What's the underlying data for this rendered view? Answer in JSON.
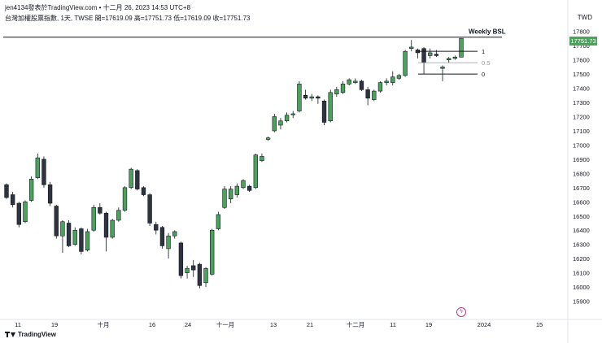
{
  "header": {
    "published_by": "jen4134發表於TradingView.com • 十二月 26, 2023 14:53 UTC+8",
    "symbol_line": "台灣加權股票指數, 1天, TWSE  開=17619.09  高=17751.73  低=17619.09  收=17751.73"
  },
  "currency": "TWD",
  "last_price_badge": "17751.73",
  "footer": {
    "brand": "TradingView"
  },
  "annotations": {
    "level_label": "Weekly BSL",
    "fib_1": "1",
    "fib_05": "0.5",
    "fib_0": "0"
  },
  "colors": {
    "up": "#4aa35a",
    "down": "#2f3340",
    "level_line": "#131722",
    "event_icon": "#b23c8c"
  },
  "chart_data": {
    "type": "candlestick",
    "ylim": [
      15800,
      17850
    ],
    "y_ticks": [
      15900,
      16000,
      16100,
      16200,
      16300,
      16400,
      16500,
      16600,
      16700,
      16800,
      16900,
      17000,
      17100,
      17200,
      17300,
      17400,
      17500,
      17600,
      17700,
      17800
    ],
    "x_ticks": [
      "11",
      "19",
      "十月",
      "16",
      "24",
      "十一月",
      "13",
      "21",
      "十二月",
      "11",
      "19",
      "2024",
      "15"
    ],
    "levels": [
      {
        "name": "Weekly BSL",
        "value": 17760
      },
      {
        "name": "1",
        "value": 17660
      },
      {
        "name": "0.5",
        "value": 17580
      },
      {
        "name": "0",
        "value": 17500
      }
    ],
    "candles": [
      {
        "o": 16720,
        "h": 16730,
        "l": 16620,
        "c": 16630
      },
      {
        "o": 16650,
        "h": 16670,
        "l": 16560,
        "c": 16580
      },
      {
        "o": 16590,
        "h": 16600,
        "l": 16420,
        "c": 16440
      },
      {
        "o": 16460,
        "h": 16610,
        "l": 16450,
        "c": 16600
      },
      {
        "o": 16610,
        "h": 16780,
        "l": 16600,
        "c": 16760
      },
      {
        "o": 16770,
        "h": 16940,
        "l": 16760,
        "c": 16910
      },
      {
        "o": 16900,
        "h": 16920,
        "l": 16700,
        "c": 16720
      },
      {
        "o": 16720,
        "h": 16740,
        "l": 16570,
        "c": 16590
      },
      {
        "o": 16570,
        "h": 16580,
        "l": 16340,
        "c": 16360
      },
      {
        "o": 16360,
        "h": 16470,
        "l": 16240,
        "c": 16460
      },
      {
        "o": 16450,
        "h": 16470,
        "l": 16280,
        "c": 16290
      },
      {
        "o": 16300,
        "h": 16420,
        "l": 16290,
        "c": 16400
      },
      {
        "o": 16410,
        "h": 16420,
        "l": 16230,
        "c": 16250
      },
      {
        "o": 16260,
        "h": 16410,
        "l": 16250,
        "c": 16390
      },
      {
        "o": 16400,
        "h": 16580,
        "l": 16390,
        "c": 16560
      },
      {
        "o": 16560,
        "h": 16590,
        "l": 16510,
        "c": 16520
      },
      {
        "o": 16520,
        "h": 16530,
        "l": 16250,
        "c": 16350
      },
      {
        "o": 16350,
        "h": 16480,
        "l": 16340,
        "c": 16470
      },
      {
        "o": 16470,
        "h": 16560,
        "l": 16460,
        "c": 16540
      },
      {
        "o": 16540,
        "h": 16710,
        "l": 16530,
        "c": 16700
      },
      {
        "o": 16700,
        "h": 16840,
        "l": 16690,
        "c": 16830
      },
      {
        "o": 16820,
        "h": 16830,
        "l": 16680,
        "c": 16690
      },
      {
        "o": 16700,
        "h": 16710,
        "l": 16640,
        "c": 16650
      },
      {
        "o": 16650,
        "h": 16660,
        "l": 16430,
        "c": 16450
      },
      {
        "o": 16440,
        "h": 16460,
        "l": 16370,
        "c": 16400
      },
      {
        "o": 16420,
        "h": 16430,
        "l": 16270,
        "c": 16290
      },
      {
        "o": 16270,
        "h": 16380,
        "l": 16200,
        "c": 16360
      },
      {
        "o": 16360,
        "h": 16400,
        "l": 16340,
        "c": 16390
      },
      {
        "o": 16310,
        "h": 16320,
        "l": 16060,
        "c": 16080
      },
      {
        "o": 16100,
        "h": 16150,
        "l": 16060,
        "c": 16130
      },
      {
        "o": 16150,
        "h": 16190,
        "l": 16070,
        "c": 16120
      },
      {
        "o": 16160,
        "h": 16170,
        "l": 15990,
        "c": 16010
      },
      {
        "o": 16030,
        "h": 16140,
        "l": 16000,
        "c": 16130
      },
      {
        "o": 16090,
        "h": 16410,
        "l": 16080,
        "c": 16400
      },
      {
        "o": 16410,
        "h": 16530,
        "l": 16400,
        "c": 16510
      },
      {
        "o": 16560,
        "h": 16710,
        "l": 16550,
        "c": 16690
      },
      {
        "o": 16620,
        "h": 16710,
        "l": 16590,
        "c": 16690
      },
      {
        "o": 16650,
        "h": 16730,
        "l": 16630,
        "c": 16710
      },
      {
        "o": 16700,
        "h": 16760,
        "l": 16690,
        "c": 16750
      },
      {
        "o": 16710,
        "h": 16720,
        "l": 16670,
        "c": 16680
      },
      {
        "o": 16700,
        "h": 16940,
        "l": 16690,
        "c": 16930
      },
      {
        "o": 16890,
        "h": 16940,
        "l": 16880,
        "c": 16920
      },
      {
        "o": 17040,
        "h": 17060,
        "l": 17030,
        "c": 17050
      },
      {
        "o": 17100,
        "h": 17220,
        "l": 17090,
        "c": 17200
      },
      {
        "o": 17140,
        "h": 17190,
        "l": 17110,
        "c": 17170
      },
      {
        "o": 17170,
        "h": 17230,
        "l": 17160,
        "c": 17210
      },
      {
        "o": 17220,
        "h": 17240,
        "l": 17190,
        "c": 17220
      },
      {
        "o": 17240,
        "h": 17450,
        "l": 17230,
        "c": 17430
      },
      {
        "o": 17350,
        "h": 17390,
        "l": 17320,
        "c": 17330
      },
      {
        "o": 17330,
        "h": 17360,
        "l": 17310,
        "c": 17340
      },
      {
        "o": 17340,
        "h": 17350,
        "l": 17290,
        "c": 17330
      },
      {
        "o": 17310,
        "h": 17320,
        "l": 17140,
        "c": 17160
      },
      {
        "o": 17170,
        "h": 17390,
        "l": 17160,
        "c": 17370
      },
      {
        "o": 17360,
        "h": 17410,
        "l": 17340,
        "c": 17390
      },
      {
        "o": 17370,
        "h": 17450,
        "l": 17360,
        "c": 17430
      },
      {
        "o": 17430,
        "h": 17470,
        "l": 17420,
        "c": 17460
      },
      {
        "o": 17440,
        "h": 17470,
        "l": 17430,
        "c": 17450
      },
      {
        "o": 17450,
        "h": 17460,
        "l": 17380,
        "c": 17390
      },
      {
        "o": 17390,
        "h": 17410,
        "l": 17280,
        "c": 17330
      },
      {
        "o": 17320,
        "h": 17390,
        "l": 17310,
        "c": 17380
      },
      {
        "o": 17380,
        "h": 17450,
        "l": 17370,
        "c": 17440
      },
      {
        "o": 17440,
        "h": 17470,
        "l": 17420,
        "c": 17450
      },
      {
        "o": 17440,
        "h": 17520,
        "l": 17420,
        "c": 17480
      },
      {
        "o": 17470,
        "h": 17500,
        "l": 17460,
        "c": 17490
      },
      {
        "o": 17490,
        "h": 17670,
        "l": 17480,
        "c": 17660
      },
      {
        "o": 17680,
        "h": 17740,
        "l": 17660,
        "c": 17690
      },
      {
        "o": 17670,
        "h": 17680,
        "l": 17610,
        "c": 17650
      },
      {
        "o": 17680,
        "h": 17690,
        "l": 17500,
        "c": 17580
      },
      {
        "o": 17630,
        "h": 17680,
        "l": 17610,
        "c": 17650
      },
      {
        "o": 17640,
        "h": 17670,
        "l": 17620,
        "c": 17630
      },
      {
        "o": 17540,
        "h": 17560,
        "l": 17450,
        "c": 17550
      },
      {
        "o": 17600,
        "h": 17620,
        "l": 17580,
        "c": 17610
      },
      {
        "o": 17610,
        "h": 17630,
        "l": 17600,
        "c": 17620
      },
      {
        "o": 17619.09,
        "h": 17751.73,
        "l": 17619.09,
        "c": 17751.73
      }
    ]
  }
}
